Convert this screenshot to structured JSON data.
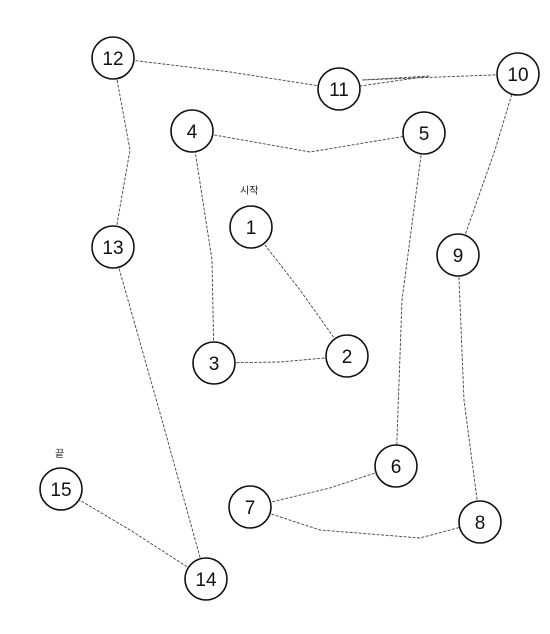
{
  "start_label": "시작",
  "end_label": "끝",
  "nodes": [
    "1",
    "2",
    "3",
    "4",
    "5",
    "6",
    "7",
    "8",
    "9",
    "10",
    "11",
    "12",
    "13",
    "14",
    "15"
  ],
  "colors": {
    "line": "#444444",
    "circle_stroke": "#111111",
    "background": "#ffffff"
  }
}
